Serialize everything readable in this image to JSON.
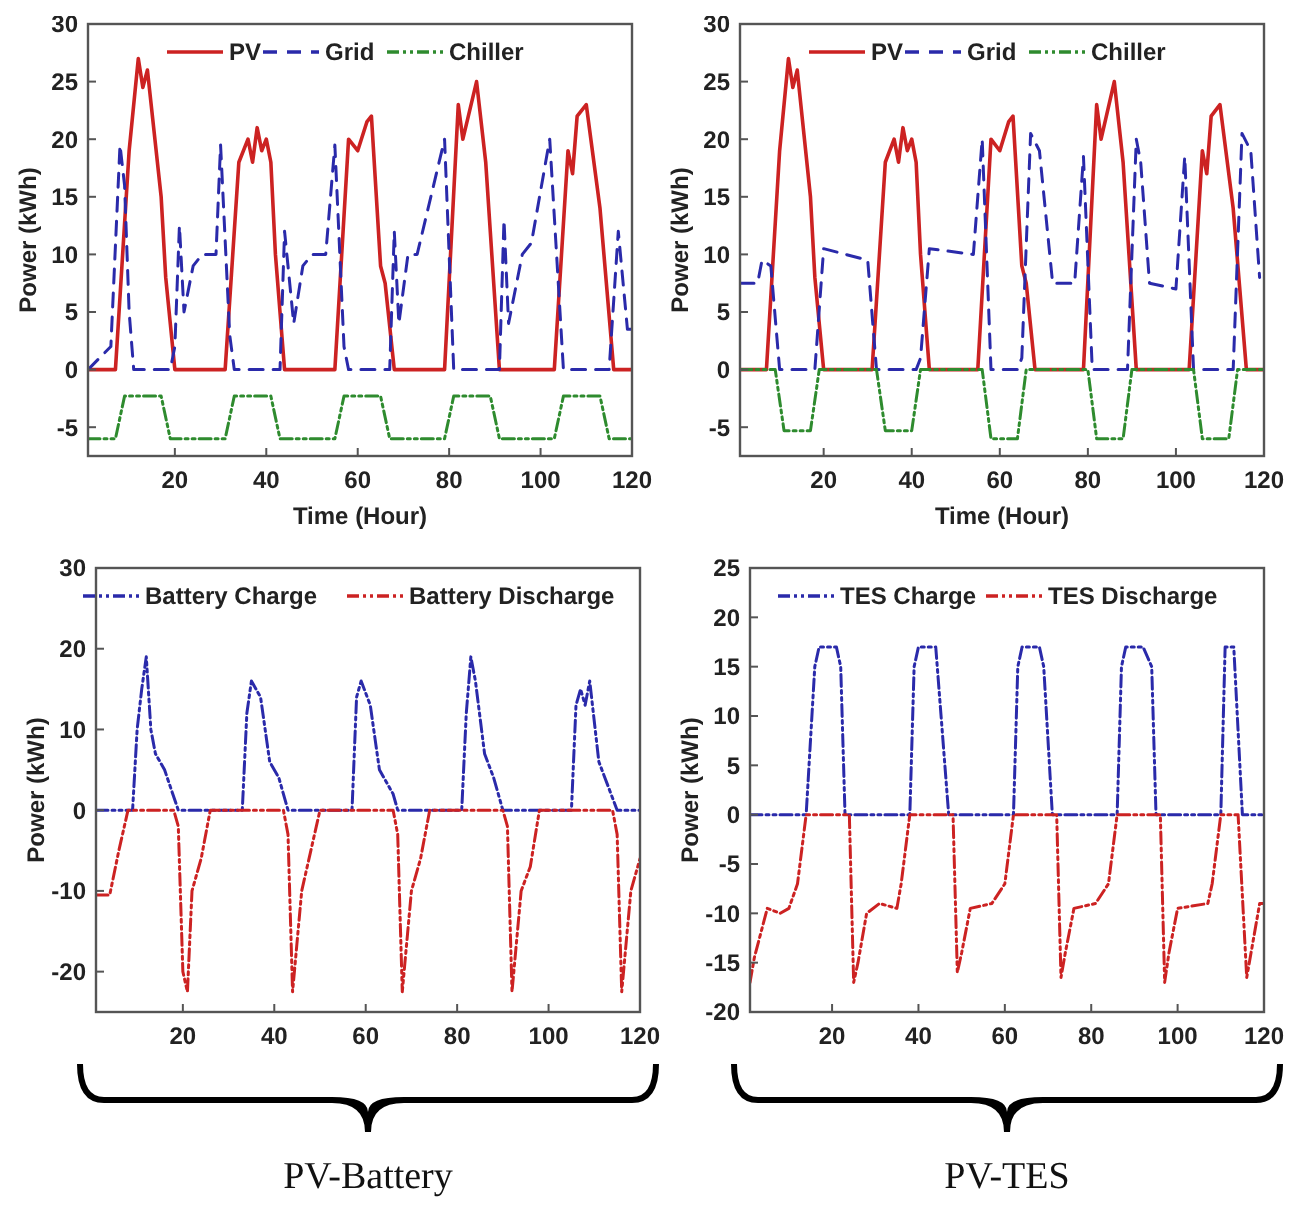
{
  "chart_data": [
    {
      "type": "line",
      "xlabel": "Time (Hour)",
      "ylabel": "Power (kWh)",
      "xlim": [
        1,
        120
      ],
      "xticks": [
        20,
        40,
        60,
        80,
        100,
        120
      ],
      "ylim": [
        -7.5,
        30
      ],
      "yticks": [
        -5,
        0,
        5,
        10,
        15,
        20,
        25,
        30
      ],
      "legend": "top",
      "grid": false,
      "series": [
        {
          "name": "PV",
          "color": "#cc2222",
          "line_style": "solid",
          "x": [
            1,
            7,
            10,
            12,
            13,
            14,
            17,
            18,
            20,
            31,
            34,
            36,
            37,
            38,
            39,
            40,
            41,
            42,
            44,
            55,
            58,
            60,
            62,
            63,
            65,
            66,
            68,
            79,
            82,
            83,
            86,
            88,
            91,
            103,
            106,
            107,
            108,
            110,
            113,
            116,
            120
          ],
          "values": [
            0,
            0,
            19,
            27,
            24.5,
            26,
            15,
            8,
            0,
            0,
            18,
            20,
            18,
            21,
            19,
            20,
            18,
            10,
            0,
            0,
            20,
            19,
            21.5,
            22,
            9,
            7.5,
            0,
            0,
            23,
            20,
            25,
            18,
            0,
            0,
            19,
            17,
            22,
            23,
            14,
            0,
            0
          ]
        },
        {
          "name": "Grid",
          "color": "#2a2aaa",
          "line_style": "dashed",
          "x": [
            1,
            6,
            8,
            9,
            10,
            11,
            19,
            20,
            21,
            22,
            24,
            26,
            29,
            30,
            32,
            33,
            43,
            44,
            46,
            48,
            50,
            53,
            55,
            57,
            58,
            67,
            68,
            69,
            71,
            73,
            79,
            81,
            91,
            92,
            93,
            96,
            98,
            102,
            105,
            115,
            117,
            119,
            120
          ],
          "values": [
            0,
            2,
            19.5,
            16,
            5,
            0,
            0,
            2,
            12.5,
            5,
            9,
            10,
            10,
            19.5,
            3,
            0,
            0,
            12,
            4,
            9,
            10,
            10,
            19.5,
            2,
            0,
            0,
            12,
            4,
            10,
            10,
            20,
            0,
            0,
            13,
            4,
            10,
            11,
            20,
            0,
            0,
            12,
            3.5,
            3.5
          ]
        },
        {
          "name": "Chiller",
          "color": "#2e8b2e",
          "line_style": "dotted",
          "x": [
            1,
            7,
            9,
            17,
            19,
            31,
            33,
            41,
            43,
            55,
            57,
            65,
            67,
            79,
            81,
            89,
            91,
            103,
            105,
            113,
            115,
            120
          ],
          "values": [
            -6,
            -6,
            -2.3,
            -2.3,
            -6,
            -6,
            -2.3,
            -2.3,
            -6,
            -6,
            -2.3,
            -2.3,
            -6,
            -6,
            -2.3,
            -2.3,
            -6,
            -6,
            -2.3,
            -2.3,
            -6,
            -6
          ]
        }
      ]
    },
    {
      "type": "line",
      "xlabel": "Time (Hour)",
      "ylabel": "Power (kWh)",
      "xlim": [
        1,
        120
      ],
      "xticks": [
        20,
        40,
        60,
        80,
        100,
        120
      ],
      "ylim": [
        -7.5,
        30
      ],
      "yticks": [
        -5,
        0,
        5,
        10,
        15,
        20,
        25,
        30
      ],
      "legend": "top",
      "grid": false,
      "series": [
        {
          "name": "PV",
          "color": "#cc2222",
          "line_style": "solid",
          "x": [
            1,
            7,
            10,
            12,
            13,
            14,
            17,
            18,
            20,
            31,
            34,
            36,
            37,
            38,
            39,
            40,
            41,
            42,
            44,
            55,
            58,
            60,
            62,
            63,
            65,
            66,
            68,
            79,
            82,
            83,
            86,
            88,
            91,
            103,
            106,
            107,
            108,
            110,
            113,
            116,
            120
          ],
          "values": [
            0,
            0,
            19,
            27,
            24.5,
            26,
            15,
            8,
            0,
            0,
            18,
            20,
            18,
            21,
            19,
            20,
            18,
            10,
            0,
            0,
            20,
            19,
            21.5,
            22,
            9,
            7.5,
            0,
            0,
            23,
            20,
            25,
            18,
            0,
            0,
            19,
            17,
            22,
            23,
            14,
            0,
            0
          ]
        },
        {
          "name": "Grid",
          "color": "#2a2aaa",
          "line_style": "dashed",
          "x": [
            1,
            5,
            6,
            8,
            10,
            18,
            20,
            25,
            30,
            32,
            41,
            42,
            44,
            54,
            56,
            58,
            64,
            65,
            67,
            69,
            72,
            77,
            79,
            81,
            89,
            91,
            92,
            94,
            100,
            102,
            104,
            113,
            115,
            117,
            119
          ],
          "values": [
            7.5,
            7.5,
            9.5,
            9,
            0,
            0,
            10.5,
            10,
            9.5,
            0,
            0,
            1,
            10.5,
            10,
            20,
            0,
            0,
            1,
            20.5,
            19,
            7.5,
            7.5,
            18.5,
            0,
            0,
            20,
            18,
            7.5,
            7,
            18.5,
            0,
            0,
            20.5,
            19,
            8
          ]
        },
        {
          "name": "Chiller",
          "color": "#2e8b2e",
          "line_style": "dotted",
          "x": [
            1,
            9,
            11,
            17,
            19,
            32,
            34,
            40,
            42,
            56,
            58,
            64,
            66,
            80,
            82,
            88,
            90,
            104,
            106,
            112,
            114,
            120
          ],
          "values": [
            0,
            0,
            -5.3,
            -5.3,
            0,
            0,
            -5.3,
            -5.3,
            0,
            0,
            -6,
            -6,
            0,
            0,
            -6,
            -6,
            0,
            0,
            -6,
            -6,
            0,
            0
          ]
        }
      ]
    },
    {
      "type": "line",
      "ylabel": "Power (kWh)",
      "xlim": [
        1,
        120
      ],
      "xticks": [
        20,
        40,
        60,
        80,
        100,
        120
      ],
      "ylim": [
        -25,
        30
      ],
      "yticks": [
        -20,
        -10,
        0,
        10,
        20,
        30
      ],
      "legend": "top",
      "grid": false,
      "annotations": [
        "PV-Battery"
      ],
      "series": [
        {
          "name": "Battery Charge",
          "color": "#2a2aaa",
          "line_style": "dotted",
          "x": [
            1,
            9,
            10,
            11,
            12,
            13,
            14,
            16,
            19,
            33,
            34,
            35,
            37,
            39,
            41,
            43,
            57,
            58,
            59,
            61,
            63,
            66,
            67,
            81,
            82,
            83,
            84,
            86,
            88,
            90,
            105,
            106,
            107,
            108,
            109,
            111,
            113,
            115,
            120
          ],
          "values": [
            0,
            0,
            10,
            15,
            19,
            10,
            7,
            5,
            0,
            0,
            12,
            16,
            14,
            6,
            4,
            0,
            0,
            14,
            16,
            13,
            5,
            2,
            0,
            0,
            12,
            19,
            16,
            7,
            4,
            0,
            0,
            13,
            15,
            13,
            16,
            6,
            3,
            0,
            0
          ]
        },
        {
          "name": "Battery Discharge",
          "color": "#cc2222",
          "line_style": "dotted",
          "x": [
            1,
            4,
            6,
            8,
            18,
            19,
            20,
            21,
            22,
            24,
            26,
            42,
            43,
            44,
            46,
            48,
            50,
            66,
            67,
            68,
            70,
            72,
            74,
            90,
            91,
            92,
            94,
            96,
            98,
            114,
            115,
            116,
            118,
            120
          ],
          "values": [
            -10.5,
            -10.5,
            -5,
            0,
            0,
            -2,
            -20,
            -22.5,
            -10,
            -6,
            0,
            0,
            -3,
            -22.5,
            -10,
            -5,
            0,
            0,
            -3,
            -22.5,
            -10,
            -6,
            0,
            0,
            -2,
            -22.5,
            -10,
            -7,
            0,
            0,
            -3,
            -22.5,
            -10,
            -6
          ]
        }
      ]
    },
    {
      "type": "line",
      "ylabel": "Power (kWh)",
      "xlim": [
        1,
        120
      ],
      "xticks": [
        20,
        40,
        60,
        80,
        100,
        120
      ],
      "ylim": [
        -20,
        25
      ],
      "yticks": [
        -20,
        -15,
        -10,
        -5,
        0,
        5,
        10,
        15,
        20,
        25
      ],
      "legend": "top",
      "grid": false,
      "annotations": [
        "PV-TES"
      ],
      "series": [
        {
          "name": "TES Charge",
          "color": "#2a2aaa",
          "line_style": "dotted",
          "x": [
            1,
            14,
            16,
            17,
            21,
            22,
            23,
            38,
            39,
            40,
            44,
            47,
            62,
            63,
            64,
            68,
            69,
            71,
            86,
            87,
            88,
            92,
            94,
            95,
            110,
            111,
            113,
            115,
            120
          ],
          "values": [
            0,
            0,
            15,
            17,
            17,
            15,
            0,
            0,
            15,
            17,
            17,
            0,
            0,
            15,
            17,
            17,
            15,
            0,
            0,
            15,
            17,
            17,
            15,
            0,
            0,
            17,
            17,
            0,
            0
          ]
        },
        {
          "name": "TES Discharge",
          "color": "#cc2222",
          "line_style": "dotted",
          "x": [
            1,
            2,
            5,
            8,
            10,
            12,
            14,
            24,
            25,
            26,
            28,
            31,
            35,
            36,
            38,
            48,
            49,
            50,
            52,
            57,
            60,
            62,
            72,
            73,
            74,
            76,
            81,
            84,
            86,
            96,
            97,
            98,
            100,
            107,
            108,
            110,
            114,
            116,
            117,
            119,
            120
          ],
          "values": [
            -17,
            -14.5,
            -9.5,
            -10,
            -9.5,
            -7,
            0,
            0,
            -17,
            -15,
            -10,
            -9,
            -9.5,
            -7,
            0,
            0,
            -16,
            -14,
            -9.5,
            -9,
            -7,
            0,
            0,
            -16.5,
            -14,
            -9.5,
            -9,
            -7,
            0,
            0,
            -17,
            -14,
            -9.5,
            -9,
            -7,
            0,
            0,
            -16.5,
            -14,
            -9,
            -9
          ]
        }
      ]
    }
  ]
}
